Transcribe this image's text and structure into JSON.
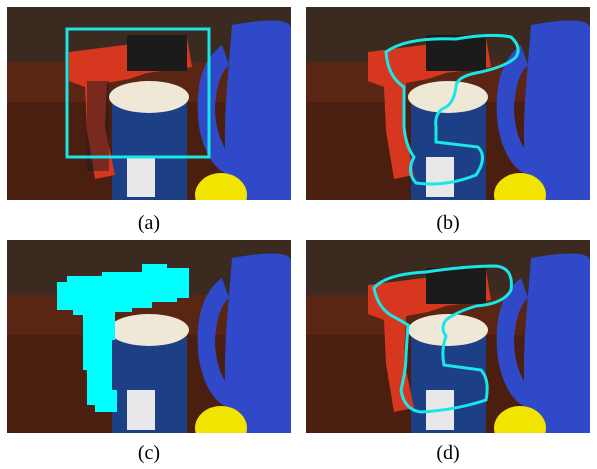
{
  "figure": {
    "panels": [
      {
        "id": "a",
        "caption": "(a)",
        "overlay": "bounding-box"
      },
      {
        "id": "b",
        "caption": "(b)",
        "overlay": "initial-contour"
      },
      {
        "id": "c",
        "caption": "(c)",
        "overlay": "mask"
      },
      {
        "id": "d",
        "caption": "(d)",
        "overlay": "final-contour"
      }
    ],
    "colors": {
      "overlay": "#19e6e6",
      "mask": "#00ffff",
      "drill_body": "#d7361f",
      "drill_dark": "#1b1b1b",
      "pitcher": "#2f49c8",
      "can_label": "#1d3f86",
      "lid": "#efe8d6",
      "table": "#5a2513",
      "wall": "#3a2a20",
      "yellow": "#f0e400"
    }
  }
}
